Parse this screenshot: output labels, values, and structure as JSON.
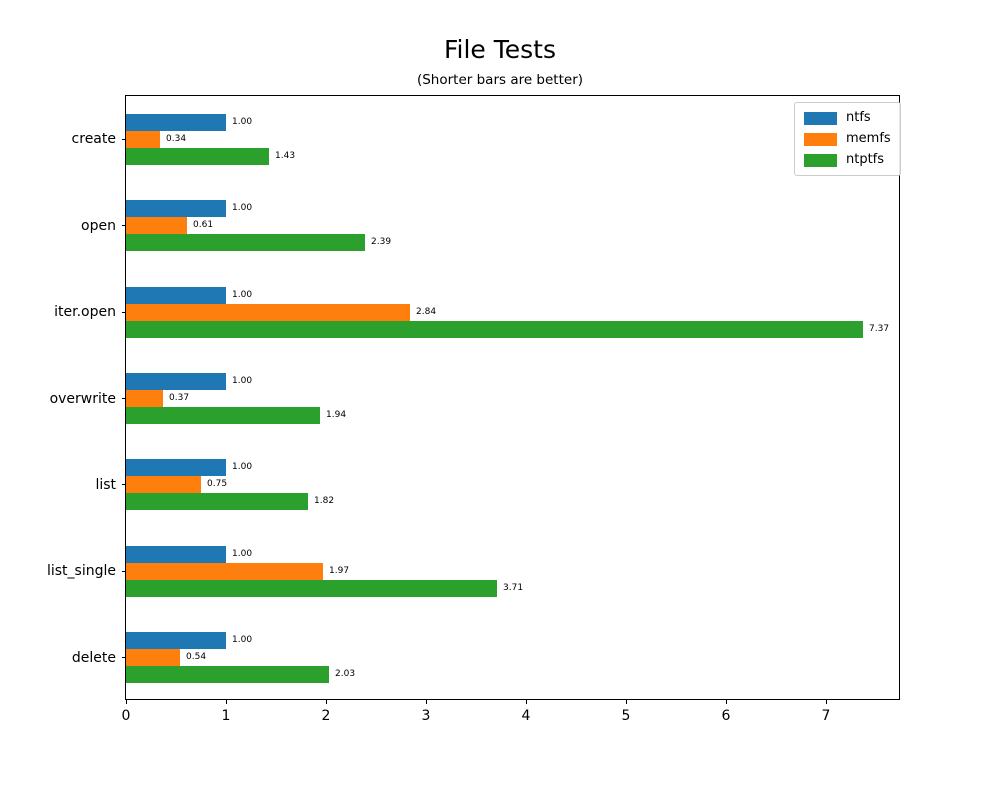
{
  "title": "File Tests",
  "subtitle": "(Shorter bars are better)",
  "chart_data": {
    "type": "bar",
    "orientation": "horizontal",
    "title": "File Tests",
    "subtitle": "(Shorter bars are better)",
    "categories": [
      "create",
      "open",
      "iter.open",
      "overwrite",
      "list",
      "list_single",
      "delete"
    ],
    "series": [
      {
        "name": "ntfs",
        "color": "#1f77b4",
        "values": [
          1.0,
          1.0,
          1.0,
          1.0,
          1.0,
          1.0,
          1.0
        ]
      },
      {
        "name": "memfs",
        "color": "#ff7f0e",
        "values": [
          0.34,
          0.61,
          2.84,
          0.37,
          0.75,
          1.97,
          0.54
        ]
      },
      {
        "name": "ntptfs",
        "color": "#2ca02c",
        "values": [
          1.43,
          2.39,
          7.37,
          1.94,
          1.82,
          3.71,
          2.03
        ]
      }
    ],
    "value_labels": [
      [
        "1.00",
        "1.00",
        "1.00",
        "1.00",
        "1.00",
        "1.00",
        "1.00"
      ],
      [
        "0.34",
        "0.61",
        "2.84",
        "0.37",
        "0.75",
        "1.97",
        "0.54"
      ],
      [
        "1.43",
        "2.39",
        "7.37",
        "1.94",
        "1.82",
        "3.71",
        "2.03"
      ]
    ],
    "x_ticks": [
      "0",
      "1",
      "2",
      "3",
      "4",
      "5",
      "6",
      "7"
    ],
    "xlim": [
      0,
      7.75
    ],
    "ylim_categories_top_to_bottom": true,
    "grid": false,
    "legend_position": "upper right",
    "legend_entries": [
      "ntfs",
      "memfs",
      "ntptfs"
    ]
  }
}
